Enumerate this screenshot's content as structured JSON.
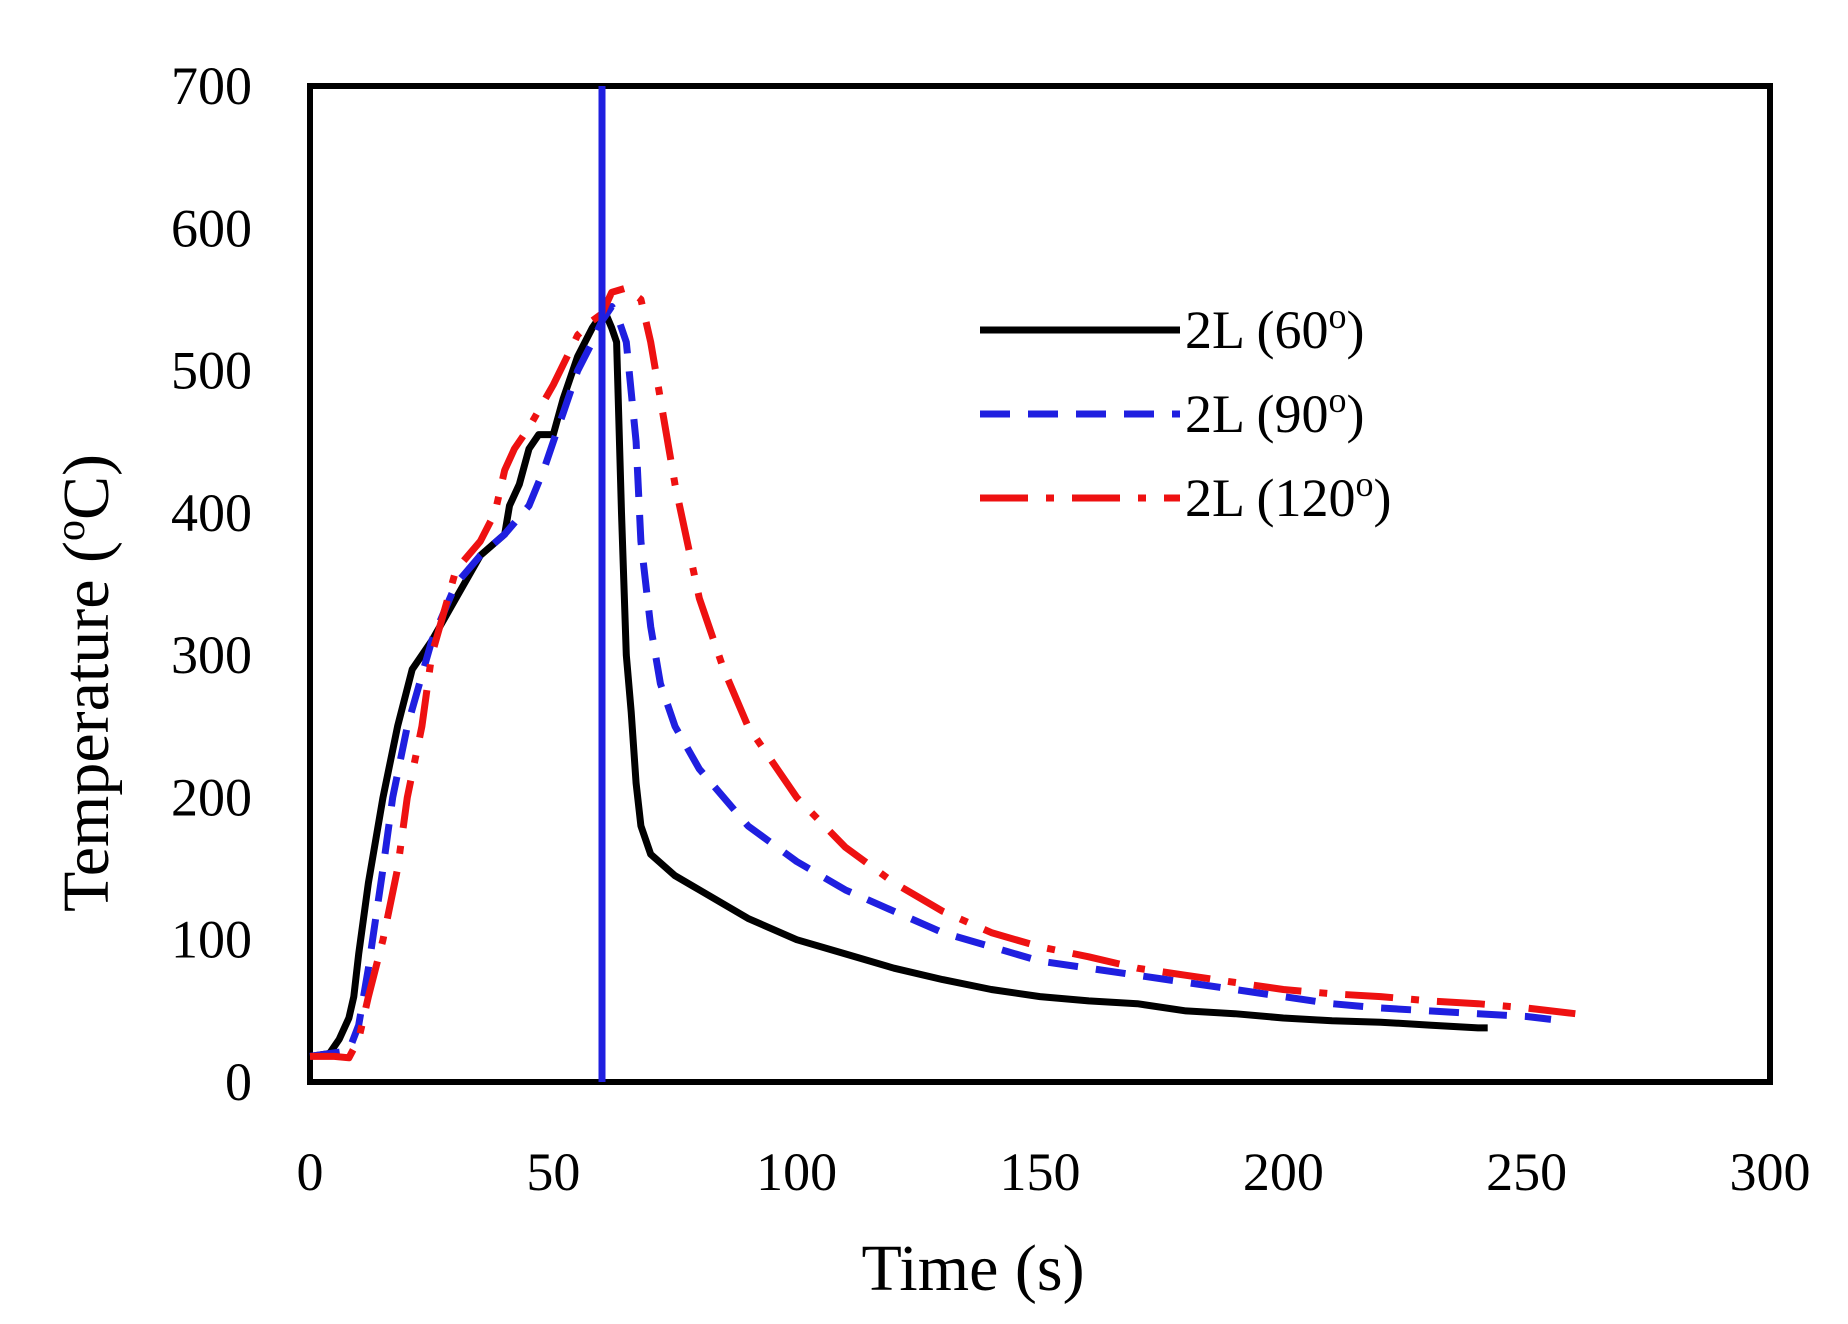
{
  "chart_data": {
    "type": "line",
    "title": "",
    "xlabel": "Time (s)",
    "ylabel": {
      "prefix": "Temperature (",
      "sup": "o",
      "suffix": "C)"
    },
    "xlim": [
      0,
      300
    ],
    "ylim": [
      0,
      700
    ],
    "xticks": [
      "0",
      "50",
      "100",
      "150",
      "200",
      "250",
      "300"
    ],
    "yticks": [
      "0",
      "100",
      "200",
      "300",
      "400",
      "500",
      "600",
      "700"
    ],
    "grid": false,
    "legend_position": "top-right",
    "vertical_marker": {
      "x": 60,
      "color": "#1f1fe0"
    },
    "series": [
      {
        "name": "2L (60°)",
        "label": "2L (60",
        "sup": "o",
        "close": ")",
        "color": "#000000",
        "style": "solid",
        "x": [
          0,
          4,
          6,
          8,
          9,
          10,
          12,
          15,
          18,
          21,
          25,
          30,
          35,
          40,
          41,
          43,
          45,
          47,
          50,
          52,
          55,
          58,
          60,
          61,
          62,
          63,
          64,
          65,
          66,
          67,
          68,
          70,
          75,
          80,
          90,
          100,
          110,
          120,
          130,
          140,
          150,
          160,
          170,
          180,
          190,
          200,
          210,
          220,
          230,
          240,
          242
        ],
        "values": [
          18,
          20,
          30,
          45,
          60,
          90,
          140,
          200,
          250,
          290,
          310,
          340,
          370,
          385,
          405,
          420,
          445,
          455,
          455,
          480,
          510,
          530,
          540,
          538,
          530,
          520,
          400,
          300,
          260,
          210,
          180,
          160,
          145,
          135,
          115,
          100,
          90,
          80,
          72,
          65,
          60,
          57,
          55,
          50,
          48,
          45,
          43,
          42,
          40,
          38,
          38
        ]
      },
      {
        "name": "2L (90°)",
        "label": "2L (90",
        "sup": "o",
        "close": ")",
        "color": "#1f1fe0",
        "style": "dashed",
        "x": [
          0,
          8,
          10,
          12,
          15,
          17,
          20,
          25,
          30,
          35,
          40,
          45,
          48,
          50,
          52,
          55,
          58,
          60,
          62,
          63,
          65,
          67,
          68,
          70,
          72,
          75,
          80,
          90,
          100,
          110,
          120,
          130,
          140,
          150,
          160,
          170,
          180,
          190,
          200,
          210,
          220,
          230,
          240,
          250,
          255
        ],
        "values": [
          18,
          22,
          40,
          80,
          150,
          200,
          250,
          310,
          350,
          370,
          385,
          405,
          430,
          450,
          470,
          500,
          520,
          535,
          545,
          540,
          520,
          450,
          380,
          320,
          280,
          250,
          220,
          180,
          155,
          135,
          120,
          105,
          95,
          85,
          80,
          75,
          70,
          65,
          60,
          55,
          52,
          50,
          48,
          46,
          44
        ]
      },
      {
        "name": "2L (120°)",
        "label": "2L (120",
        "sup": "o",
        "close": ")",
        "color": "#ee1111",
        "style": "dashdot",
        "x": [
          0,
          5,
          8,
          10,
          12,
          15,
          18,
          20,
          23,
          25,
          30,
          35,
          38,
          40,
          42,
          45,
          50,
          55,
          58,
          60,
          62,
          65,
          68,
          70,
          72,
          75,
          80,
          85,
          90,
          100,
          110,
          120,
          130,
          140,
          150,
          160,
          170,
          180,
          190,
          200,
          210,
          220,
          230,
          240,
          250,
          260
        ],
        "values": [
          18,
          18,
          17,
          30,
          60,
          100,
          150,
          200,
          250,
          300,
          360,
          380,
          400,
          430,
          445,
          460,
          490,
          525,
          535,
          540,
          555,
          558,
          550,
          520,
          480,
          420,
          340,
          290,
          250,
          200,
          165,
          140,
          120,
          105,
          95,
          88,
          80,
          75,
          70,
          65,
          62,
          60,
          57,
          55,
          52,
          48
        ]
      }
    ]
  }
}
